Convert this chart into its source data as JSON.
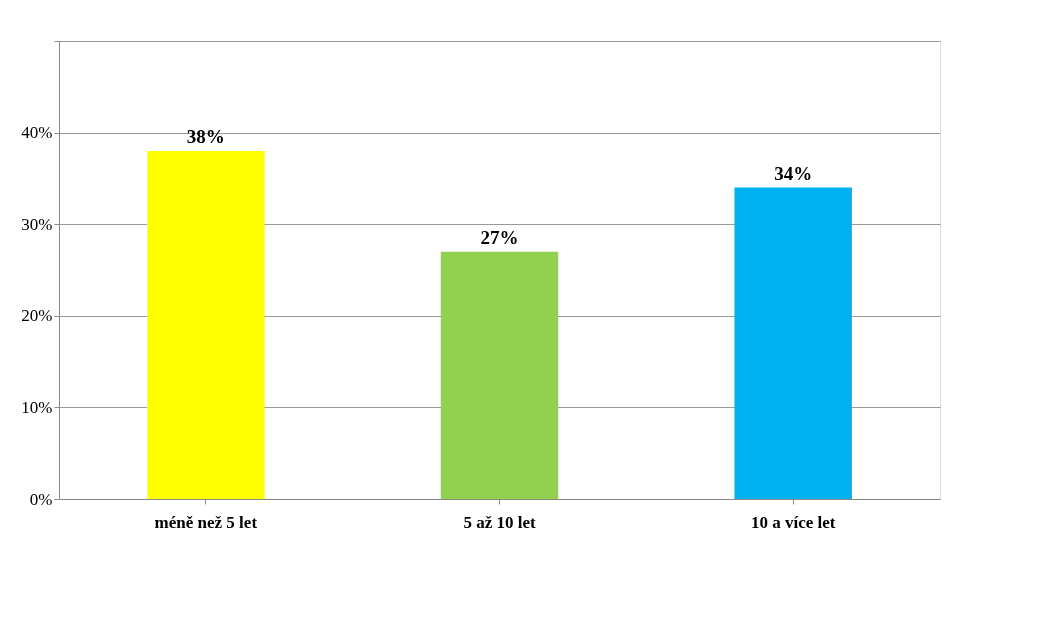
{
  "chart_data": {
    "type": "bar",
    "categories": [
      "méně než 5 let",
      "5 až 10 let",
      "10 a více let"
    ],
    "values": [
      38,
      27,
      34
    ],
    "colors": [
      "#ffff00",
      "#92d050",
      "#00b0f0"
    ],
    "value_labels": [
      "38%",
      "27%",
      "34%"
    ],
    "ylim": [
      0,
      50
    ],
    "yticks": [
      {
        "value": 0,
        "label": "0%"
      },
      {
        "value": 10,
        "label": "10%"
      },
      {
        "value": 20,
        "label": "20%"
      },
      {
        "value": 30,
        "label": "30%"
      },
      {
        "value": 40,
        "label": "40%"
      },
      {
        "value": 50,
        "label": null
      }
    ],
    "grid": "y",
    "legend": false
  }
}
